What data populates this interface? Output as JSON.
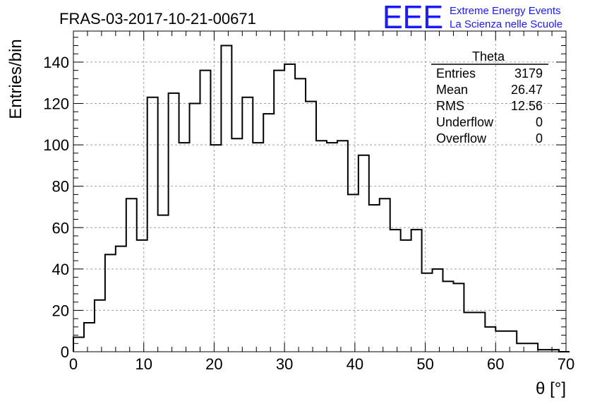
{
  "chart_data": {
    "type": "bar",
    "title": "FRAS-03-2017-10-21-00671",
    "xlabel": "θ [°]",
    "ylabel": "Entries/bin",
    "xlim": [
      0,
      70
    ],
    "ylim": [
      0,
      155
    ],
    "x_ticks": [
      "0",
      "10",
      "20",
      "30",
      "40",
      "50",
      "60",
      "70"
    ],
    "y_ticks": [
      "0",
      "20",
      "40",
      "60",
      "80",
      "100",
      "120",
      "140"
    ],
    "grid": true,
    "bin_width": 1.5,
    "bins_start": 0,
    "values": [
      7,
      14,
      25,
      47,
      51,
      74,
      54,
      123,
      66,
      125,
      101,
      120,
      136,
      100,
      148,
      103,
      123,
      101,
      115,
      136,
      139,
      132,
      121,
      102,
      101,
      102,
      76,
      95,
      71,
      74,
      59,
      54,
      59,
      38,
      40,
      34,
      33,
      19,
      19,
      12,
      10,
      10,
      4,
      4,
      1,
      1,
      0
    ]
  },
  "stats_box": {
    "name": "Theta",
    "rows": [
      {
        "label": "Entries",
        "value": "3179"
      },
      {
        "label": "Mean",
        "value": "26.47"
      },
      {
        "label": "RMS",
        "value": "12.56"
      },
      {
        "label": "Underflow",
        "value": "0"
      },
      {
        "label": "Overflow",
        "value": "0"
      }
    ]
  },
  "logo": {
    "mark": "EEE",
    "line1": "Extreme Energy Events",
    "line2": "La Scienza nelle Scuole",
    "color": "#1a1aff"
  }
}
